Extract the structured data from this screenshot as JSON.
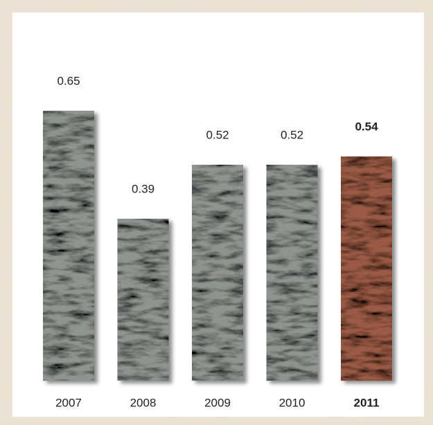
{
  "chart_data": {
    "type": "bar",
    "categories": [
      "2007",
      "2008",
      "2009",
      "2010",
      "2011"
    ],
    "values": [
      0.65,
      0.39,
      0.52,
      0.52,
      0.54
    ],
    "colors": [
      "#8e948f",
      "#8e948f",
      "#8e948f",
      "#8e948f",
      "#9a5a44"
    ],
    "highlight": 4
  }
}
